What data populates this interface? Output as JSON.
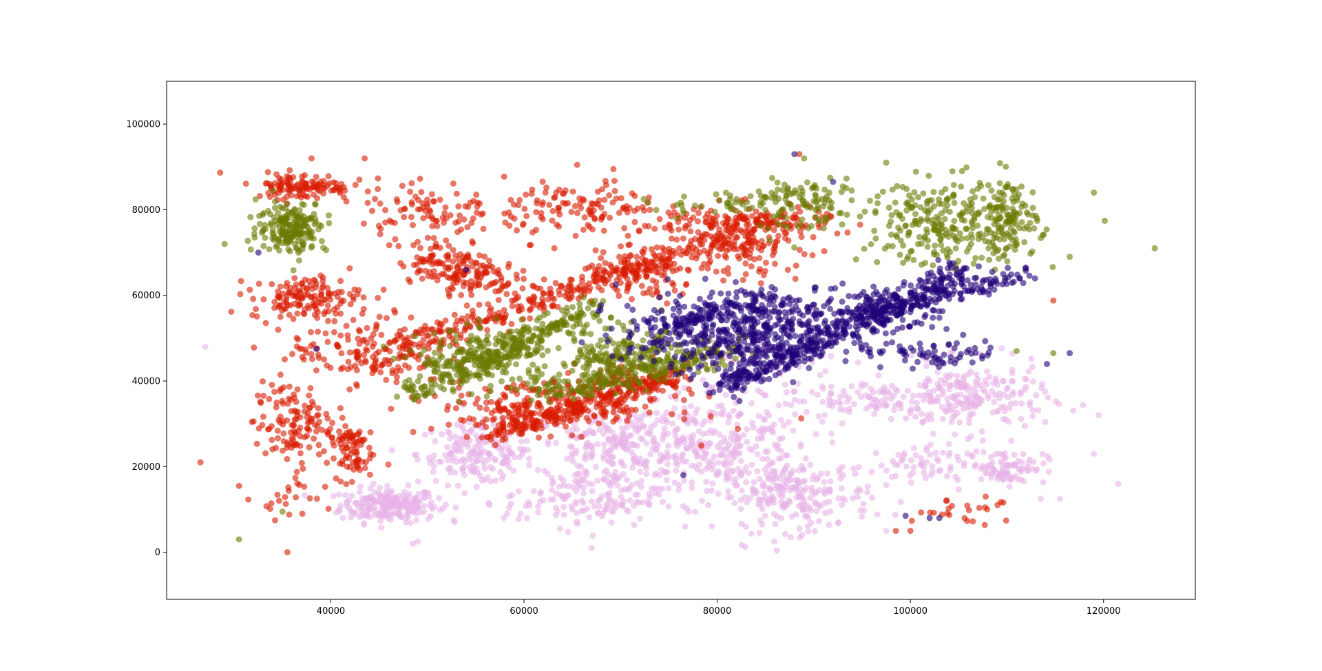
{
  "chart_data": {
    "type": "scatter",
    "title": "",
    "xlabel": "",
    "ylabel": "",
    "xlim": [
      23000,
      129500
    ],
    "ylim": [
      -11000,
      110000
    ],
    "x_ticks": [
      40000,
      60000,
      80000,
      100000,
      120000
    ],
    "y_ticks": [
      0,
      20000,
      40000,
      60000,
      80000,
      100000
    ],
    "x_tick_labels": [
      "40000",
      "60000",
      "80000",
      "100000",
      "120000"
    ],
    "y_tick_labels": [
      "0",
      "20000",
      "40000",
      "60000",
      "80000",
      "100000"
    ],
    "grid": false,
    "legend": "none",
    "marker_alpha": 0.6,
    "series": [
      {
        "color": "#d81b00",
        "clusters": [
          {
            "cx": 37000,
            "cy": 85500,
            "sx": 2500,
            "sy": 1500,
            "n": 120
          },
          {
            "cx": 37500,
            "cy": 59500,
            "sx": 2800,
            "sy": 2500,
            "n": 140
          },
          {
            "cx": 36000,
            "cy": 30000,
            "sx": 2000,
            "sy": 5000,
            "n": 130
          },
          {
            "cx": 42000,
            "cy": 24000,
            "sx": 1200,
            "sy": 3500,
            "n": 80
          },
          {
            "cx": 44000,
            "cy": 47000,
            "sx": 4000,
            "sy": 4000,
            "n": 160
          },
          {
            "cx": 52000,
            "cy": 68000,
            "sx": 2500,
            "sy": 2500,
            "n": 90
          },
          {
            "cx": 55000,
            "cy": 64000,
            "sx": 2000,
            "sy": 2000,
            "n": 80
          },
          {
            "cx": 50000,
            "cy": 80000,
            "sx": 3500,
            "sy": 3500,
            "n": 90
          },
          {
            "cx": 66000,
            "cy": 80000,
            "sx": 4000,
            "sy": 3500,
            "n": 120
          },
          {
            "cx": 72000,
            "cy": 64000,
            "sx": 3000,
            "sy": 3000,
            "n": 100
          },
          {
            "cx": 82000,
            "cy": 72000,
            "sx": 3500,
            "sy": 4000,
            "n": 130
          },
          {
            "cx": 63000,
            "cy": 34000,
            "sx": 6000,
            "sy": 3000,
            "n": 260
          },
          {
            "cx": 72000,
            "cy": 40000,
            "sx": 3000,
            "sy": 2500,
            "n": 80
          },
          {
            "cx": 82000,
            "cy": 77000,
            "sx": 5000,
            "sy": 2000,
            "n": 120
          },
          {
            "cx": 106000,
            "cy": 10000,
            "sx": 3000,
            "sy": 1500,
            "n": 25
          },
          {
            "cx": 36000,
            "cy": 12000,
            "sx": 2000,
            "sy": 2500,
            "n": 20
          }
        ],
        "lines": [
          {
            "x1": 46000,
            "y1": 47000,
            "x2": 88000,
            "y2": 79000,
            "n": 360,
            "jitter": 1500
          },
          {
            "x1": 56000,
            "y1": 27000,
            "x2": 76000,
            "y2": 42000,
            "n": 220,
            "jitter": 1300
          }
        ],
        "points": [
          [
            26500,
            21000
          ],
          [
            35500,
            0
          ],
          [
            30500,
            15500
          ],
          [
            114800,
            58800
          ],
          [
            43500,
            92000
          ],
          [
            38000,
            92000
          ],
          [
            98500,
            5000
          ],
          [
            100000,
            5000
          ],
          [
            88500,
            93000
          ],
          [
            65500,
            90500
          ]
        ]
      },
      {
        "color": "#6b7a00",
        "clusters": [
          {
            "cx": 36000,
            "cy": 76000,
            "sx": 1800,
            "sy": 3000,
            "n": 200
          },
          {
            "cx": 56000,
            "cy": 45000,
            "sx": 3500,
            "sy": 3500,
            "n": 200
          },
          {
            "cx": 70000,
            "cy": 45000,
            "sx": 3500,
            "sy": 3500,
            "n": 200
          },
          {
            "cx": 104000,
            "cy": 77000,
            "sx": 4500,
            "sy": 5000,
            "n": 260
          },
          {
            "cx": 89000,
            "cy": 80000,
            "sx": 3000,
            "sy": 3000,
            "n": 80
          },
          {
            "cx": 110000,
            "cy": 78000,
            "sx": 1500,
            "sy": 5000,
            "n": 100
          }
        ],
        "lines": [
          {
            "x1": 48000,
            "y1": 37000,
            "x2": 68000,
            "y2": 58000,
            "n": 260,
            "jitter": 1500
          },
          {
            "x1": 62000,
            "y1": 37000,
            "x2": 82000,
            "y2": 48000,
            "n": 200,
            "jitter": 1500
          },
          {
            "x1": 74000,
            "y1": 80000,
            "x2": 92000,
            "y2": 84000,
            "n": 60,
            "jitter": 1500
          }
        ],
        "points": [
          [
            125300,
            71000
          ],
          [
            119000,
            84000
          ],
          [
            116500,
            69000
          ],
          [
            114800,
            46500
          ],
          [
            30500,
            3000
          ],
          [
            35000,
            9500
          ],
          [
            29000,
            72000
          ],
          [
            111000,
            47000
          ],
          [
            97500,
            91000
          ],
          [
            89000,
            92000
          ]
        ]
      },
      {
        "color": "#1f0078",
        "clusters": [
          {
            "cx": 80000,
            "cy": 51000,
            "sx": 5000,
            "sy": 5000,
            "n": 320
          },
          {
            "cx": 86000,
            "cy": 52000,
            "sx": 3000,
            "sy": 4000,
            "n": 150
          },
          {
            "cx": 96000,
            "cy": 56000,
            "sx": 4000,
            "sy": 3000,
            "n": 150
          },
          {
            "cx": 102000,
            "cy": 46000,
            "sx": 4000,
            "sy": 1500,
            "n": 70
          }
        ],
        "lines": [
          {
            "x1": 80000,
            "y1": 38000,
            "x2": 106000,
            "y2": 66000,
            "n": 360,
            "jitter": 1600
          },
          {
            "x1": 96000,
            "y1": 56000,
            "x2": 112000,
            "y2": 65000,
            "n": 120,
            "jitter": 1200
          },
          {
            "x1": 72000,
            "y1": 52000,
            "x2": 86000,
            "y2": 59000,
            "n": 100,
            "jitter": 1400
          }
        ],
        "points": [
          [
            88000,
            93000
          ],
          [
            116500,
            46500
          ],
          [
            103000,
            8000
          ],
          [
            99500,
            8500
          ],
          [
            102000,
            8000
          ],
          [
            92000,
            86500
          ],
          [
            32500,
            70000
          ],
          [
            38500,
            47500
          ],
          [
            54000,
            66000
          ],
          [
            76500,
            18000
          ]
        ]
      },
      {
        "color": "#e8b4e8",
        "clusters": [
          {
            "cx": 46000,
            "cy": 11000,
            "sx": 2500,
            "sy": 2000,
            "n": 230
          },
          {
            "cx": 55000,
            "cy": 23000,
            "sx": 3000,
            "sy": 3500,
            "n": 170
          },
          {
            "cx": 70000,
            "cy": 24000,
            "sx": 5000,
            "sy": 5000,
            "n": 260
          },
          {
            "cx": 80000,
            "cy": 25000,
            "sx": 5000,
            "sy": 7000,
            "n": 300
          },
          {
            "cx": 88000,
            "cy": 13000,
            "sx": 4000,
            "sy": 4000,
            "n": 210
          },
          {
            "cx": 106000,
            "cy": 36000,
            "sx": 4000,
            "sy": 4000,
            "n": 220
          },
          {
            "cx": 110000,
            "cy": 20000,
            "sx": 2000,
            "sy": 2000,
            "n": 90
          },
          {
            "cx": 100000,
            "cy": 20000,
            "sx": 3000,
            "sy": 2500,
            "n": 60
          },
          {
            "cx": 66000,
            "cy": 12000,
            "sx": 4000,
            "sy": 3000,
            "n": 120
          },
          {
            "cx": 95000,
            "cy": 36000,
            "sx": 4000,
            "sy": 2500,
            "n": 80
          },
          {
            "cx": 86000,
            "cy": 45000,
            "sx": 4000,
            "sy": 3000,
            "n": 60
          }
        ],
        "lines": [],
        "points": [
          [
            27000,
            48000
          ],
          [
            119500,
            32000
          ],
          [
            121500,
            16000
          ],
          [
            119000,
            23000
          ],
          [
            67000,
            1000
          ],
          [
            49000,
            2500
          ],
          [
            97500,
            5000
          ],
          [
            48500,
            2000
          ],
          [
            113500,
            12500
          ],
          [
            115500,
            12500
          ]
        ]
      }
    ]
  }
}
